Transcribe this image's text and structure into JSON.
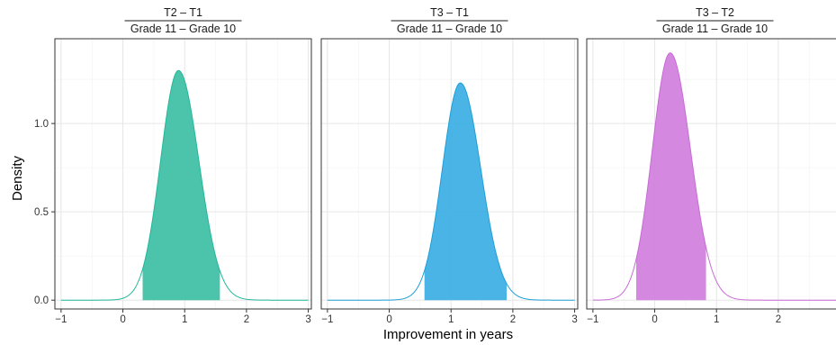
{
  "chart_data": {
    "type": "area",
    "xlabel": "Improvement in years",
    "ylabel": "Density",
    "xlim": [
      -1.1,
      3.05
    ],
    "ylim": [
      -0.05,
      1.48
    ],
    "x_ticks": [
      -1,
      0,
      1,
      2,
      3
    ],
    "y_ticks": [
      0.0,
      0.5,
      1.0
    ],
    "y_tick_labels": [
      "0.0",
      "0.5",
      "1.0"
    ],
    "x_tick_labels": [
      "-1",
      "0",
      "1",
      "2",
      "3"
    ],
    "grid": true,
    "legend": "none",
    "panels": [
      {
        "numerator": "T2 – T1",
        "denominator": "Grade 11 – Grade 10",
        "color": "#20B89A",
        "fill": "#3DBFA4",
        "peak_x": 0.9,
        "peak_density": 1.3,
        "interval": [
          0.32,
          1.57
        ],
        "x_range": [
          -1,
          3
        ]
      },
      {
        "numerator": "T3 – T1",
        "denominator": "Grade 11 – Grade 10",
        "color": "#1E9FD8",
        "fill": "#3AAEE3",
        "peak_x": 1.15,
        "peak_density": 1.23,
        "interval": [
          0.57,
          1.9
        ],
        "x_range": [
          -1,
          3
        ]
      },
      {
        "numerator": "T3 – T2",
        "denominator": "Grade 11 – Grade 10",
        "color": "#C86BD6",
        "fill": "#D07EDD",
        "peak_x": 0.25,
        "peak_density": 1.4,
        "interval": [
          -0.3,
          0.83
        ],
        "x_range": [
          -1,
          3
        ]
      }
    ]
  }
}
